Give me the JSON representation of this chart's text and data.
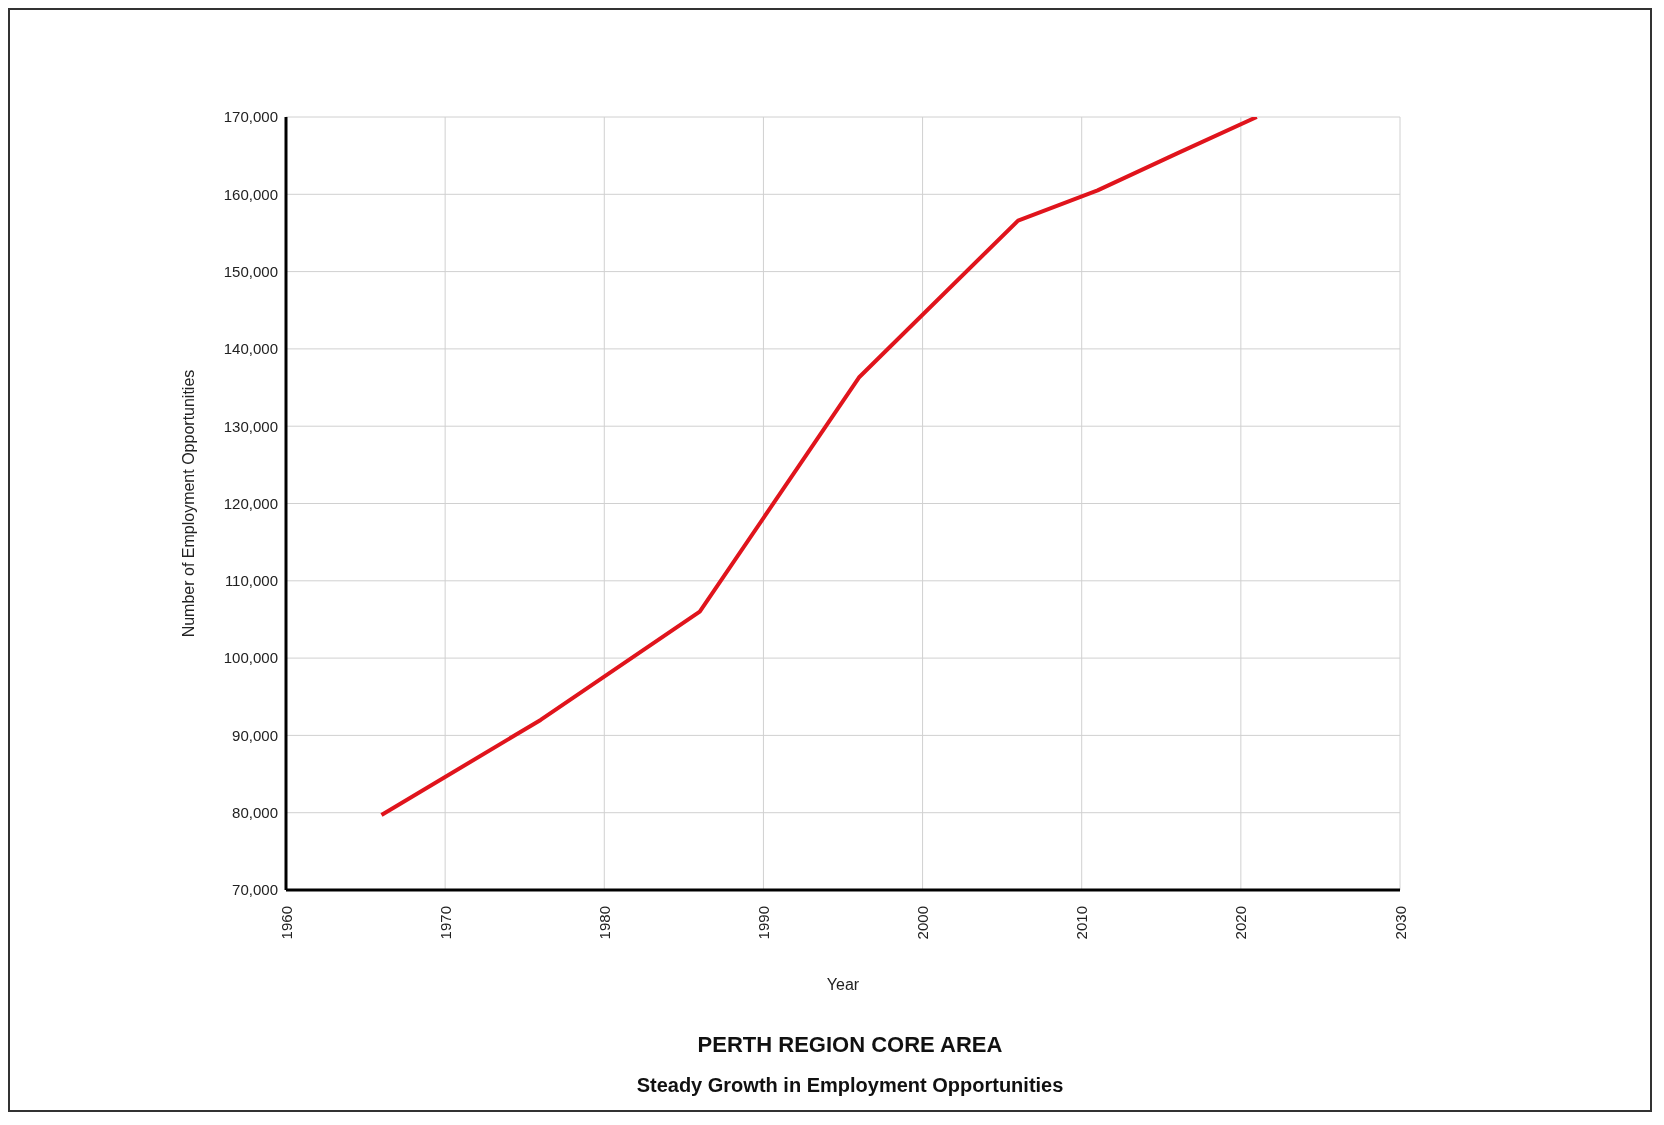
{
  "chart_data": {
    "type": "line",
    "title": "PERTH REGION CORE AREA",
    "subtitle": "Steady Growth in Employment Opportunities",
    "xlabel": "Year",
    "ylabel": "Number of Employment Opportunities",
    "x": [
      1966,
      1976,
      1986,
      1996,
      2006,
      2011,
      2016,
      2021
    ],
    "series": [
      {
        "color": "#e0141c",
        "values": [
          79700,
          92000,
          106000,
          136300,
          156600,
          160500,
          165300,
          170000
        ]
      }
    ],
    "xlim": [
      1960,
      2030
    ],
    "xticks": [
      1960,
      1970,
      1980,
      1990,
      2000,
      2010,
      2020,
      2030
    ],
    "ylim": [
      70000,
      170000
    ],
    "yticks": [
      {
        "value": 70000,
        "label": "70,000"
      },
      {
        "value": 80000,
        "label": "80,000"
      },
      {
        "value": 90000,
        "label": "90,000"
      },
      {
        "value": 100000,
        "label": "100,000"
      },
      {
        "value": 110000,
        "label": "110,000"
      },
      {
        "value": 120000,
        "label": "120,000"
      },
      {
        "value": 130000,
        "label": "130,000"
      },
      {
        "value": 140000,
        "label": "140,000"
      },
      {
        "value": 150000,
        "label": "150,000"
      },
      {
        "value": 160000,
        "label": "160,000"
      },
      {
        "value": 170000,
        "label": "170,000"
      }
    ],
    "grid": true,
    "legend": false,
    "marker": "none",
    "line_style": "solid"
  }
}
